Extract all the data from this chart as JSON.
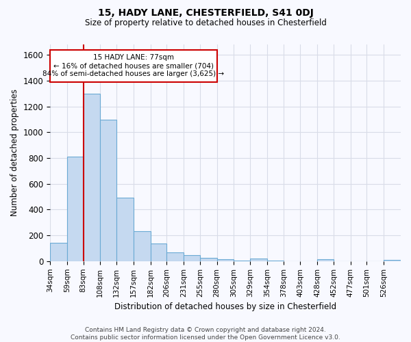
{
  "title": "15, HADY LANE, CHESTERFIELD, S41 0DJ",
  "subtitle": "Size of property relative to detached houses in Chesterfield",
  "xlabel": "Distribution of detached houses by size in Chesterfield",
  "ylabel": "Number of detached properties",
  "footer_line1": "Contains HM Land Registry data © Crown copyright and database right 2024.",
  "footer_line2": "Contains public sector information licensed under the Open Government Licence v3.0.",
  "bin_labels": [
    "34sqm",
    "59sqm",
    "83sqm",
    "108sqm",
    "132sqm",
    "157sqm",
    "182sqm",
    "206sqm",
    "231sqm",
    "255sqm",
    "280sqm",
    "305sqm",
    "329sqm",
    "354sqm",
    "378sqm",
    "403sqm",
    "428sqm",
    "452sqm",
    "477sqm",
    "501sqm",
    "526sqm"
  ],
  "bar_values": [
    140,
    810,
    1300,
    1095,
    490,
    230,
    135,
    70,
    45,
    25,
    15,
    5,
    20,
    5,
    0,
    0,
    15,
    0,
    0,
    0,
    10
  ],
  "bar_color": "#c5d9f0",
  "bar_edge_color": "#6aaad4",
  "vline_x_index": 2,
  "bin_edges": [
    34,
    59,
    83,
    108,
    132,
    157,
    182,
    206,
    231,
    255,
    280,
    305,
    329,
    354,
    378,
    403,
    428,
    452,
    477,
    501,
    526,
    551
  ],
  "annotation_line1": "15 HADY LANE: 77sqm",
  "annotation_line2": "← 16% of detached houses are smaller (704)",
  "annotation_line3": "84% of semi-detached houses are larger (3,625) →",
  "ylim": [
    0,
    1680
  ],
  "yticks": [
    0,
    200,
    400,
    600,
    800,
    1000,
    1200,
    1400,
    1600
  ],
  "grid_color": "#d8dce8",
  "vline_color": "#cc0000",
  "bg_color": "#f8f9ff"
}
